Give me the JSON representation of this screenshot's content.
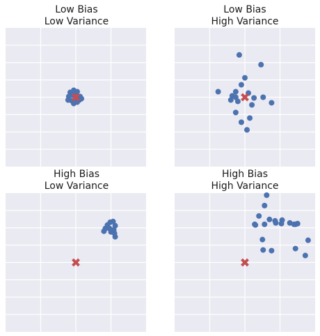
{
  "colors": {
    "axes_bg": "#eaeaf2",
    "grid": "#ffffff",
    "points": "#4c72b0",
    "target": "#c44e52"
  },
  "chart_data": [
    {
      "type": "scatter",
      "title_line1": "Low Bias",
      "title_line2": "Low Variance",
      "xlim": [
        -2,
        2
      ],
      "ylim": [
        -2,
        2
      ],
      "grid": true,
      "target": [
        0,
        0
      ],
      "points": [
        [
          -0.16,
          0.14
        ],
        [
          -0.06,
          0.2
        ],
        [
          0.04,
          0.16
        ],
        [
          -0.2,
          0.02
        ],
        [
          -0.08,
          0.06
        ],
        [
          0.02,
          0.02
        ],
        [
          0.12,
          0.02
        ],
        [
          0.16,
          -0.04
        ],
        [
          -0.22,
          -0.08
        ],
        [
          -0.12,
          -0.1
        ],
        [
          -0.02,
          -0.08
        ],
        [
          0.04,
          -0.14
        ],
        [
          -0.06,
          -0.18
        ],
        [
          0.1,
          -0.08
        ],
        [
          0.0,
          0.08
        ]
      ]
    },
    {
      "type": "scatter",
      "title_line1": "Low Bias",
      "title_line2": "High Variance",
      "xlim": [
        -2,
        2
      ],
      "ylim": [
        -2,
        2
      ],
      "grid": true,
      "target": [
        0,
        0
      ],
      "points": [
        [
          -0.16,
          1.22
        ],
        [
          0.46,
          0.94
        ],
        [
          0.0,
          0.56
        ],
        [
          -0.1,
          0.36
        ],
        [
          -0.76,
          0.16
        ],
        [
          -0.26,
          0.16
        ],
        [
          -0.36,
          0.04
        ],
        [
          -0.26,
          0.0
        ],
        [
          0.1,
          0.12
        ],
        [
          0.26,
          -0.02
        ],
        [
          0.52,
          0.0
        ],
        [
          -0.4,
          -0.08
        ],
        [
          -0.2,
          -0.12
        ],
        [
          0.2,
          -0.22
        ],
        [
          0.76,
          -0.16
        ],
        [
          -0.26,
          -0.44
        ],
        [
          0.14,
          -0.6
        ],
        [
          -0.1,
          -0.72
        ],
        [
          0.06,
          -0.94
        ]
      ]
    },
    {
      "type": "scatter",
      "title_line1": "High Bias",
      "title_line2": "Low Variance",
      "xlim": [
        -2,
        2
      ],
      "ylim": [
        -2,
        2
      ],
      "grid": true,
      "target": [
        0,
        0
      ],
      "points": [
        [
          0.98,
          1.16
        ],
        [
          1.06,
          1.18
        ],
        [
          0.9,
          1.08
        ],
        [
          1.12,
          1.06
        ],
        [
          0.84,
          0.98
        ],
        [
          0.96,
          0.98
        ],
        [
          1.08,
          0.94
        ],
        [
          0.8,
          0.9
        ],
        [
          1.0,
          0.88
        ],
        [
          1.1,
          0.84
        ],
        [
          1.12,
          0.74
        ]
      ]
    },
    {
      "type": "scatter",
      "title_line1": "High Bias",
      "title_line2": "High Variance",
      "xlim": [
        -2,
        2
      ],
      "ylim": [
        -2,
        2
      ],
      "grid": true,
      "target": [
        0,
        0
      ],
      "points": [
        [
          0.62,
          1.94
        ],
        [
          0.56,
          1.64
        ],
        [
          0.4,
          1.34
        ],
        [
          0.7,
          1.24
        ],
        [
          0.86,
          1.2
        ],
        [
          0.88,
          1.14
        ],
        [
          1.06,
          1.22
        ],
        [
          1.04,
          1.12
        ],
        [
          1.28,
          1.14
        ],
        [
          1.44,
          1.1
        ],
        [
          1.5,
          1.12
        ],
        [
          1.4,
          1.1
        ],
        [
          0.28,
          1.1
        ],
        [
          0.3,
          1.08
        ],
        [
          0.56,
          1.1
        ],
        [
          0.5,
          0.66
        ],
        [
          1.8,
          0.64
        ],
        [
          0.52,
          0.36
        ],
        [
          0.76,
          0.34
        ],
        [
          1.44,
          0.4
        ],
        [
          1.72,
          0.2
        ]
      ]
    }
  ]
}
